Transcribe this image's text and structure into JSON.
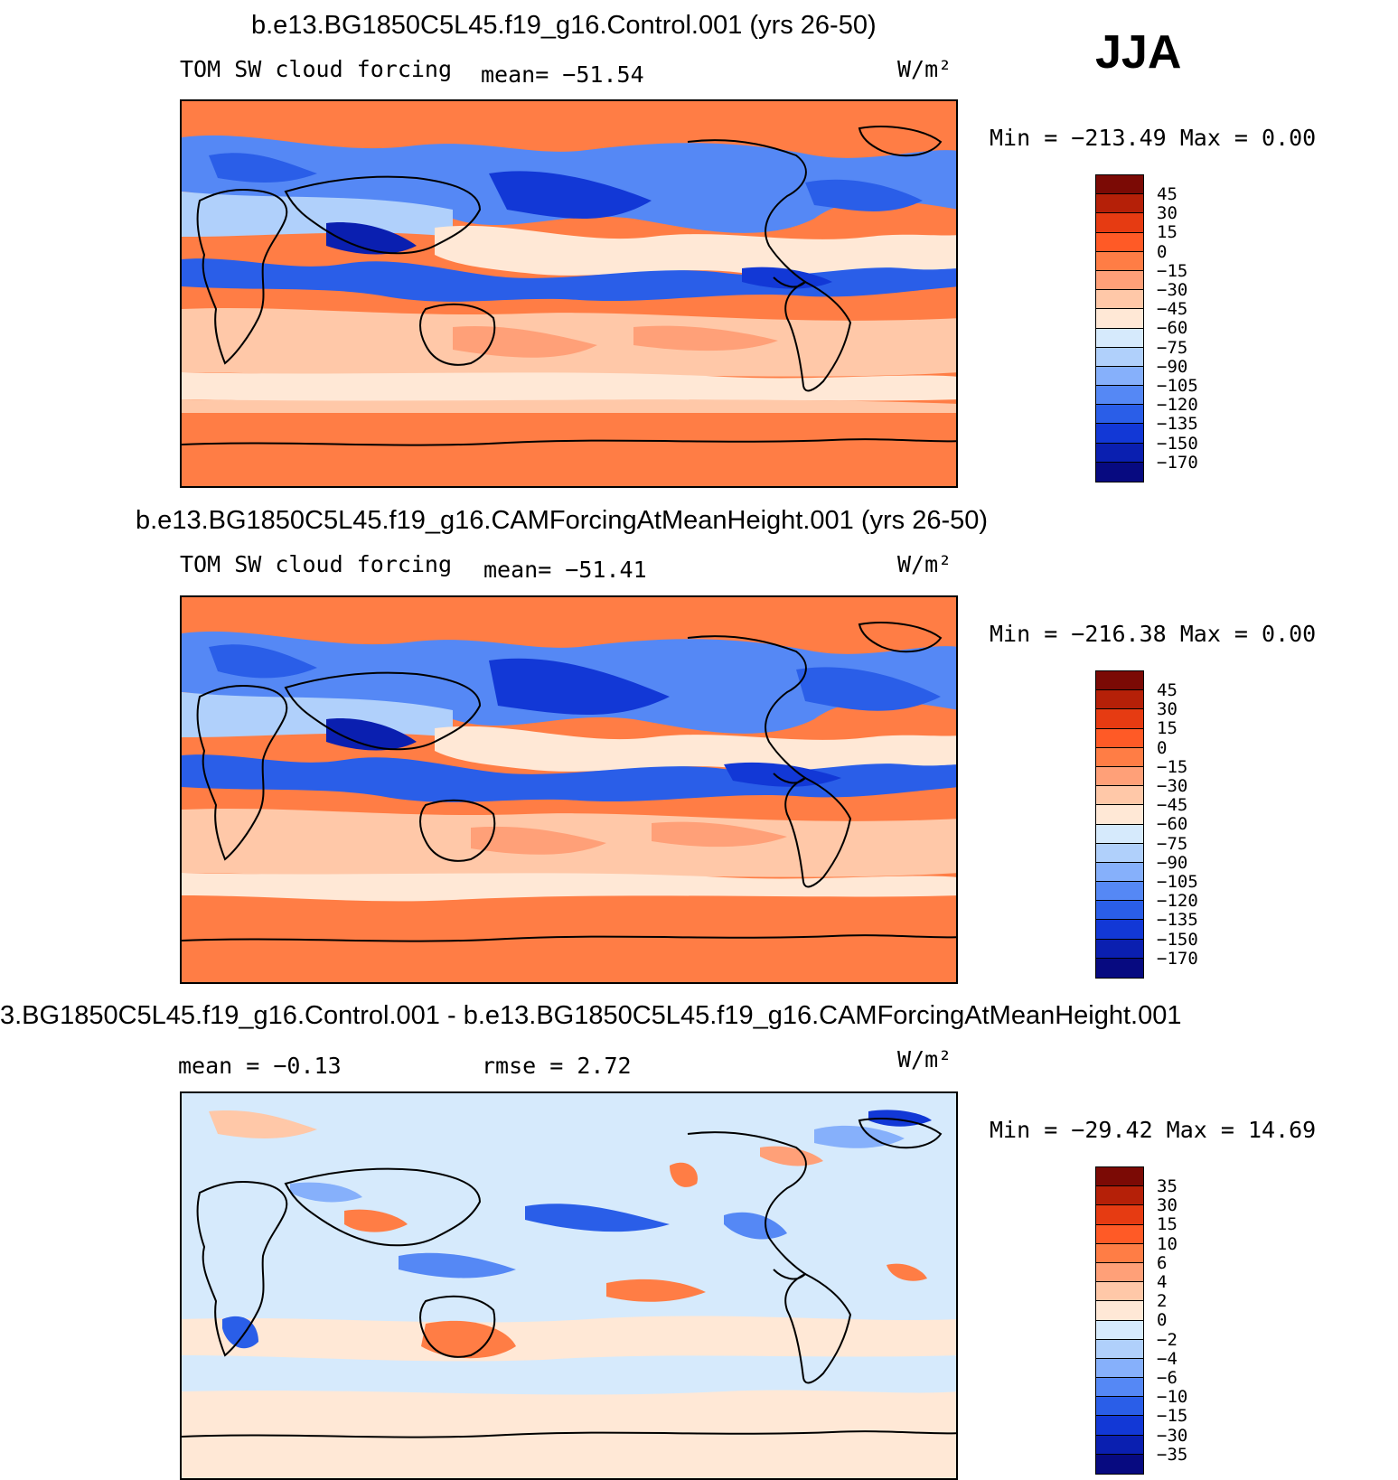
{
  "season": "JJA",
  "units": "W/m²",
  "panels": [
    {
      "title": "b.e13.BG1850C5L45.f19_g16.Control.001 (yrs 26-50)",
      "variable": "TOM SW cloud forcing",
      "stat": "mean= −51.54",
      "minmax": "Min = −213.49 Max =    0.00",
      "levels": [
        "45",
        "30",
        "15",
        "0",
        "−15",
        "−30",
        "−45",
        "−60",
        "−75",
        "−90",
        "−105",
        "−120",
        "−135",
        "−150",
        "−170"
      ]
    },
    {
      "title": "b.e13.BG1850C5L45.f19_g16.CAMForcingAtMeanHeight.001 (yrs 26-50)",
      "variable": "TOM SW cloud forcing",
      "stat": "mean= −51.41",
      "minmax": "Min = −216.38 Max =    0.00",
      "levels": [
        "45",
        "30",
        "15",
        "0",
        "−15",
        "−30",
        "−45",
        "−60",
        "−75",
        "−90",
        "−105",
        "−120",
        "−135",
        "−150",
        "−170"
      ]
    },
    {
      "title": "3.BG1850C5L45.f19_g16.Control.001 - b.e13.BG1850C5L45.f19_g16.CAMForcingAtMeanHeight.001",
      "stat_mean": "mean =   −0.13",
      "stat_rmse": "rmse =    2.72",
      "minmax": "Min = −29.42 Max =   14.69",
      "levels": [
        "35",
        "30",
        "15",
        "10",
        "6",
        "4",
        "2",
        "0",
        "−2",
        "−4",
        "−6",
        "−10",
        "−15",
        "−30",
        "−35"
      ]
    }
  ],
  "palette": [
    "#7b0a05",
    "#b52008",
    "#e63b12",
    "#ff5a26",
    "#ff7d45",
    "#ffa078",
    "#ffc8a8",
    "#ffe8d6",
    "#d6eafc",
    "#b0d0fb",
    "#86b0fb",
    "#5588f5",
    "#2a5ee8",
    "#1238d6",
    "#0a1fb0",
    "#070a80"
  ]
}
